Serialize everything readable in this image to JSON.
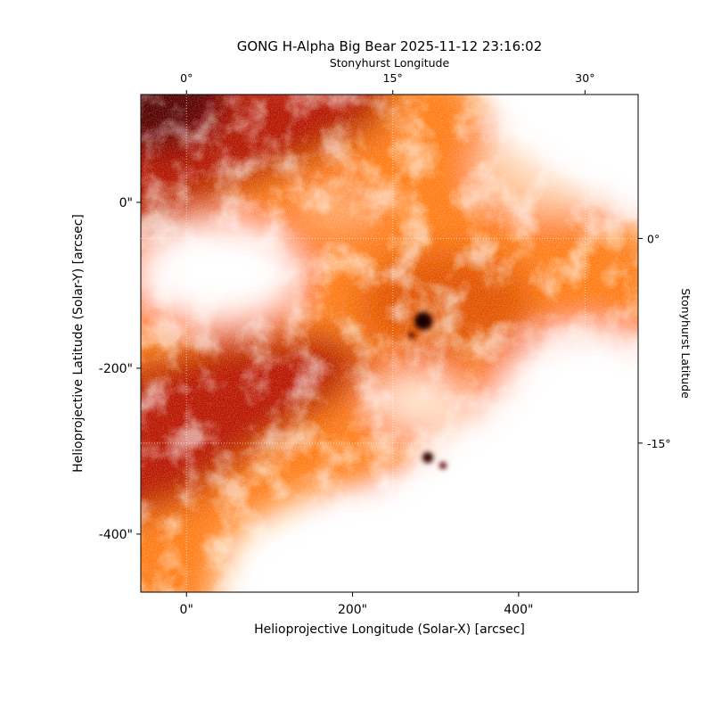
{
  "chart_data": {
    "type": "image",
    "title": "GONG H-Alpha Big Bear 2025-11-12 23:16:02",
    "xlabel": "Helioprojective Longitude (Solar-X) [arcsec]",
    "ylabel": "Helioprojective Latitude (Solar-Y) [arcsec]",
    "top_xlabel": "Stonyhurst Longitude",
    "right_ylabel": "Stonyhurst Latitude",
    "xlim": [
      -55,
      544
    ],
    "ylim": [
      -470,
      130
    ],
    "xticks": [
      {
        "value": 0,
        "label": "0\""
      },
      {
        "value": 200,
        "label": "200\""
      },
      {
        "value": 400,
        "label": "400\""
      }
    ],
    "yticks": [
      {
        "value": 0,
        "label": "0\""
      },
      {
        "value": -200,
        "label": "-200\""
      },
      {
        "value": -400,
        "label": "-400\""
      }
    ],
    "top_xticks": [
      {
        "value": 0,
        "label": "0°"
      },
      {
        "value": 15,
        "label": "15°"
      },
      {
        "value": 30,
        "label": "30°"
      }
    ],
    "right_yticks": [
      {
        "value": 0,
        "label": "0°"
      },
      {
        "value": -15,
        "label": "-15°"
      }
    ],
    "grid": true
  }
}
